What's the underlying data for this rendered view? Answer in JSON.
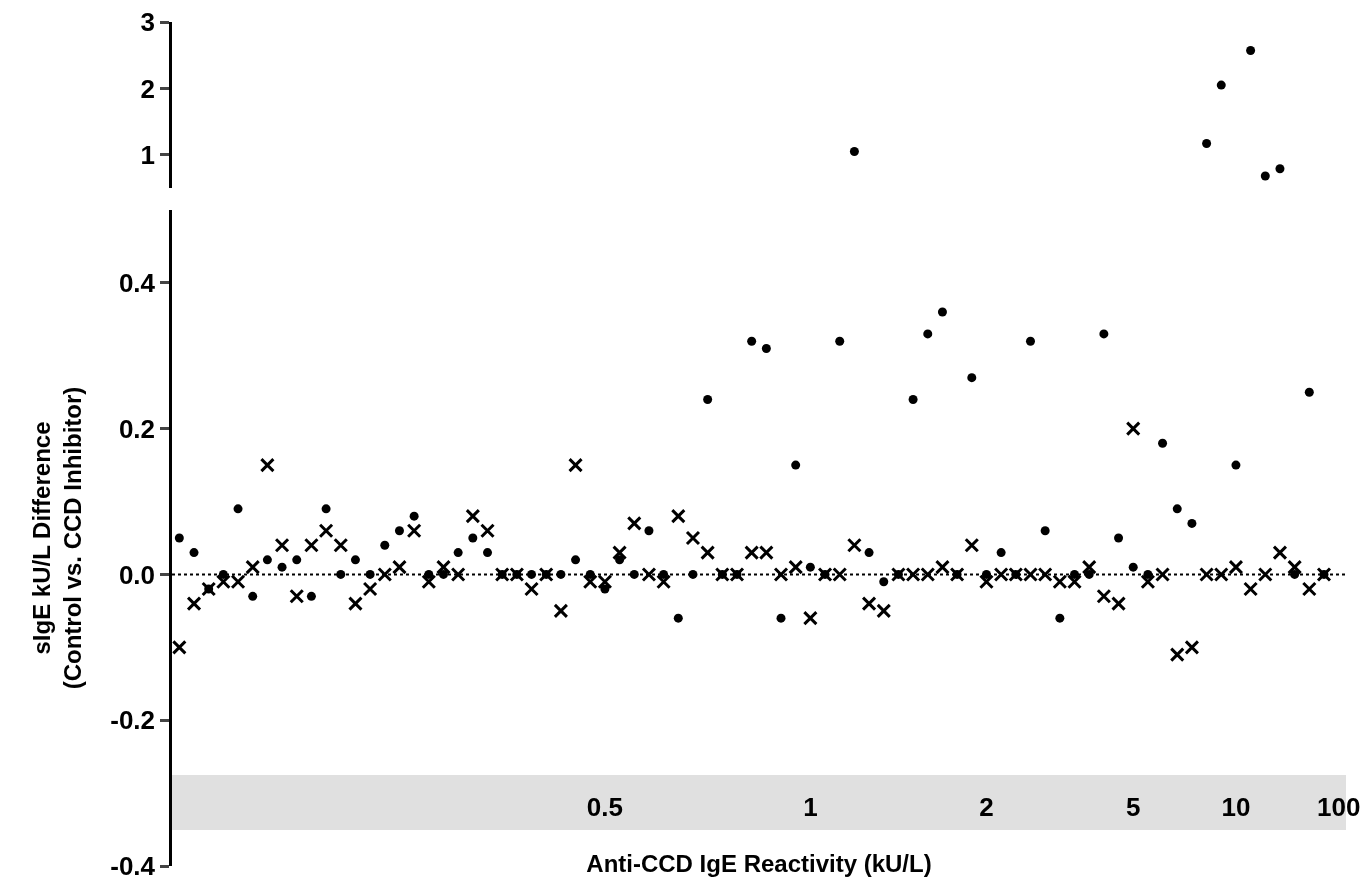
{
  "chart_data": [
    {
      "type": "scatter",
      "tick_labels": "y",
      "ylim": [
        0.5,
        3
      ],
      "yticks": [
        1,
        2,
        3
      ],
      "grid": false,
      "categories": [
        null,
        null,
        null,
        null,
        null,
        null,
        null,
        null,
        null,
        null,
        null,
        null,
        null,
        null,
        null,
        null,
        null,
        null,
        null,
        null,
        null,
        null,
        null,
        null,
        null,
        null,
        null,
        null,
        null,
        "0.5",
        null,
        null,
        null,
        null,
        null,
        null,
        null,
        null,
        null,
        null,
        null,
        null,
        null,
        "1",
        null,
        null,
        null,
        null,
        null,
        null,
        null,
        null,
        null,
        null,
        null,
        "2",
        null,
        null,
        null,
        null,
        null,
        null,
        null,
        null,
        null,
        "5",
        null,
        null,
        null,
        null,
        null,
        null,
        "10",
        null,
        null,
        null,
        null,
        null,
        null,
        "100"
      ],
      "series": [
        {
          "color": "#000000",
          "marker": "circle",
          "values": [
            null,
            null,
            null,
            null,
            null,
            null,
            null,
            null,
            null,
            null,
            null,
            null,
            null,
            null,
            null,
            null,
            null,
            null,
            null,
            null,
            null,
            null,
            null,
            null,
            null,
            null,
            null,
            null,
            null,
            null,
            null,
            null,
            null,
            null,
            null,
            null,
            null,
            null,
            null,
            null,
            null,
            null,
            null,
            null,
            null,
            null,
            1.05,
            null,
            null,
            null,
            null,
            null,
            null,
            null,
            null,
            null,
            null,
            null,
            null,
            null,
            null,
            null,
            null,
            null,
            null,
            null,
            null,
            null,
            null,
            null,
            1.17,
            2.05,
            null,
            2.57,
            0.68,
            0.79,
            null,
            null,
            null,
            null
          ]
        }
      ]
    },
    {
      "type": "scatter",
      "xlabel": "Anti-CCD IgE Reactivity (kU/L)",
      "ylabel": "sIgE kU/L Difference\n(Control vs. CCD Inhibitor)",
      "ylim": [
        -0.4,
        0.5
      ],
      "yticks": [
        {
          "value": -0.4,
          "label": "-0.4"
        },
        -0.2,
        {
          "value": 0,
          "label": "0.0"
        },
        0.2,
        0.4
      ],
      "grid": false,
      "categories": [
        null,
        null,
        null,
        null,
        null,
        null,
        null,
        null,
        null,
        null,
        null,
        null,
        null,
        null,
        null,
        null,
        null,
        null,
        null,
        null,
        null,
        null,
        null,
        null,
        null,
        null,
        null,
        null,
        null,
        "0.5",
        null,
        null,
        null,
        null,
        null,
        null,
        null,
        null,
        null,
        null,
        null,
        null,
        null,
        "1",
        null,
        null,
        null,
        null,
        null,
        null,
        null,
        null,
        null,
        null,
        null,
        "2",
        null,
        null,
        null,
        null,
        null,
        null,
        null,
        null,
        null,
        "5",
        null,
        null,
        null,
        null,
        null,
        null,
        "10",
        null,
        null,
        null,
        null,
        null,
        null,
        "100"
      ],
      "ref_lines": [
        {
          "axis": "y",
          "value": 0,
          "color": "#000000",
          "line_style": "dotted"
        }
      ],
      "series": [
        {
          "color": "#000000",
          "marker": "cross",
          "values": [
            -0.1,
            -0.04,
            -0.02,
            -0.01,
            -0.01,
            0.01,
            0.15,
            0.04,
            -0.03,
            0.04,
            0.06,
            0.04,
            -0.04,
            -0.02,
            0,
            0.01,
            0.06,
            -0.01,
            0.01,
            0,
            0.08,
            0.06,
            0,
            0,
            -0.02,
            0,
            -0.05,
            0.15,
            -0.01,
            -0.01,
            0.03,
            0.07,
            0,
            -0.01,
            0.08,
            0.05,
            0.03,
            0,
            0,
            0.03,
            0.03,
            0,
            0.01,
            -0.06,
            0,
            0,
            0.04,
            -0.04,
            -0.05,
            0,
            0,
            0,
            0.01,
            0,
            0.04,
            -0.01,
            0,
            0,
            0,
            0,
            -0.01,
            -0.01,
            0.01,
            -0.03,
            -0.04,
            0.2,
            -0.01,
            0,
            -0.11,
            -0.1,
            0,
            0,
            0.01,
            -0.02,
            0,
            0.03,
            0.01,
            -0.02,
            0,
            null
          ]
        },
        {
          "color": "#000000",
          "marker": "circle",
          "values": [
            0.05,
            0.03,
            -0.02,
            0,
            0.09,
            -0.03,
            0.02,
            0.01,
            0.02,
            -0.03,
            0.09,
            0,
            0.02,
            0,
            0.04,
            0.06,
            0.08,
            0,
            0,
            0.03,
            0.05,
            0.03,
            0,
            0,
            0,
            0,
            0,
            0.02,
            0,
            -0.02,
            0.02,
            0,
            0.06,
            0,
            -0.06,
            0,
            0.24,
            0,
            0,
            0.32,
            0.31,
            -0.06,
            0.15,
            0.01,
            0,
            0.32,
            null,
            0.03,
            -0.01,
            0,
            0.24,
            0.33,
            0.36,
            0,
            0.27,
            0,
            0.03,
            0,
            0.32,
            0.06,
            -0.06,
            0,
            0,
            0.33,
            0.05,
            0.01,
            0,
            0.18,
            0.09,
            0.07,
            null,
            null,
            0.15,
            null,
            null,
            null,
            0,
            0.25,
            0,
            null
          ]
        }
      ]
    }
  ]
}
